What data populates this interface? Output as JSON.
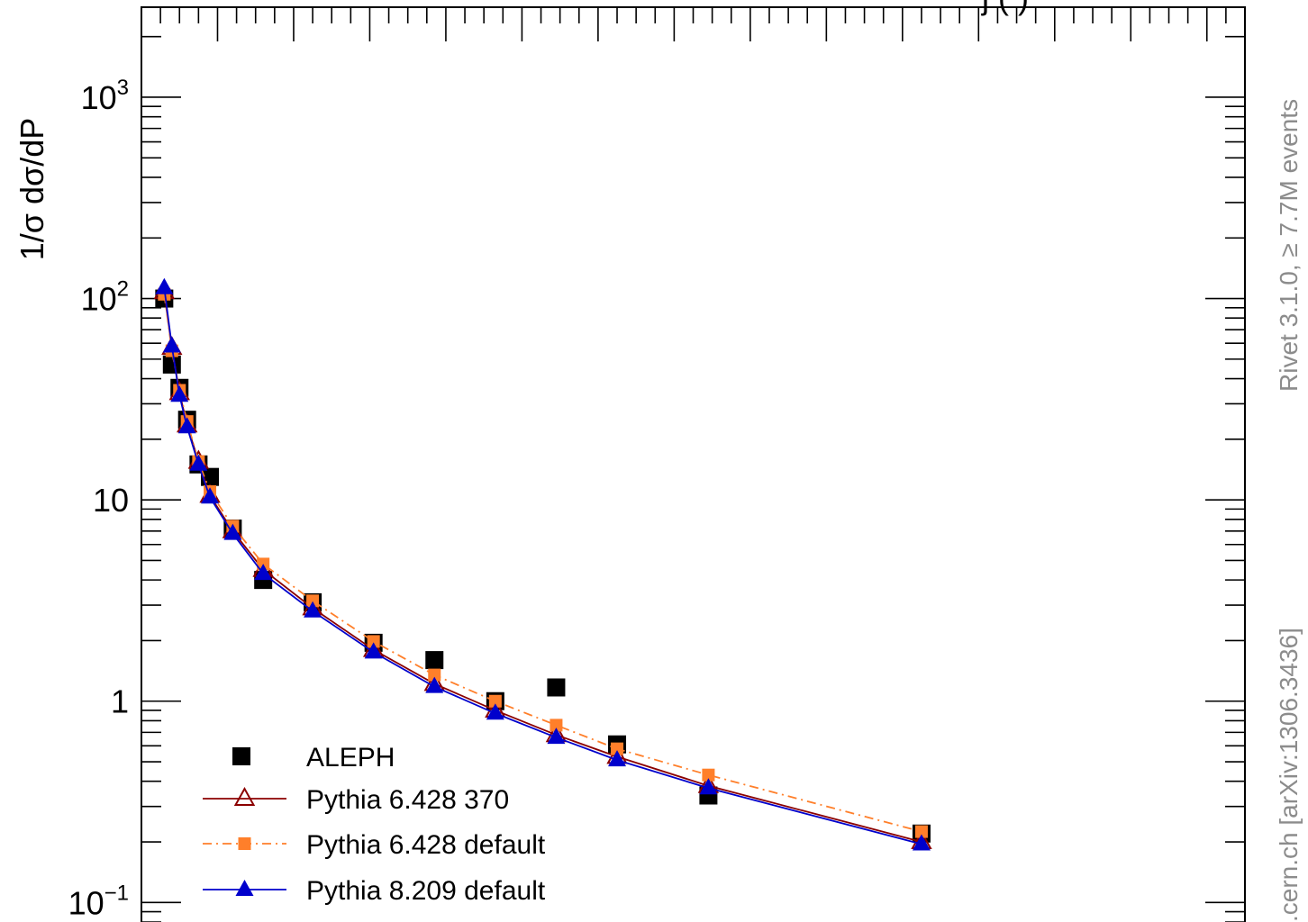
{
  "chart_data": {
    "type": "scatter",
    "title": "",
    "xlabel": "",
    "ylabel": "1/σ  dσ/dP",
    "y_scale": "log",
    "ylim": [
      0.08,
      2800
    ],
    "xlim": [
      0.0,
      0.145
    ],
    "y_ticks": [
      {
        "value": 0.1,
        "base": "10",
        "exp": "−1"
      },
      {
        "value": 1,
        "label": "1"
      },
      {
        "value": 10,
        "label": "10"
      },
      {
        "value": 100,
        "base": "10",
        "exp": "2"
      },
      {
        "value": 1000,
        "base": "10",
        "exp": "3"
      }
    ],
    "legend_position": "bottom-left",
    "series": [
      {
        "name": "ALEPH",
        "style": "data",
        "color": "#000000",
        "marker": "filled-square",
        "x": [
          0.003,
          0.004,
          0.005,
          0.006,
          0.0075,
          0.009,
          0.012,
          0.016,
          0.0225,
          0.0305,
          0.0385,
          0.0465,
          0.0545,
          0.0625,
          0.0745,
          0.1025
        ],
        "y": [
          100,
          47,
          36,
          25,
          15,
          13,
          7.2,
          4,
          3.1,
          1.95,
          1.6,
          1.0,
          1.17,
          0.61,
          0.34,
          0.22
        ]
      },
      {
        "name": "Pythia 6.428 370",
        "style": "solid",
        "color": "#8b0000",
        "marker": "open-triangle",
        "x": [
          0.003,
          0.004,
          0.005,
          0.006,
          0.0075,
          0.009,
          0.012,
          0.016,
          0.0225,
          0.0305,
          0.0385,
          0.0465,
          0.0545,
          0.0625,
          0.0745,
          0.1025
        ],
        "y": [
          108,
          57,
          34,
          23.5,
          15.5,
          10.5,
          7.0,
          4.5,
          2.9,
          1.8,
          1.22,
          0.9,
          0.68,
          0.53,
          0.38,
          0.2
        ]
      },
      {
        "name": "Pythia 6.428 default",
        "style": "dash-dot",
        "color": "#ff7f2a",
        "marker": "filled-square-small",
        "x": [
          0.003,
          0.004,
          0.005,
          0.006,
          0.0075,
          0.009,
          0.012,
          0.016,
          0.0225,
          0.0305,
          0.0385,
          0.0465,
          0.0545,
          0.0625,
          0.0745,
          0.1025
        ],
        "y": [
          105,
          55,
          35,
          24.5,
          15.5,
          11.0,
          7.4,
          4.8,
          3.15,
          1.98,
          1.35,
          1.0,
          0.76,
          0.58,
          0.43,
          0.225
        ]
      },
      {
        "name": "Pythia 8.209 default",
        "style": "solid",
        "color": "#0000cc",
        "marker": "filled-triangle",
        "x": [
          0.003,
          0.004,
          0.005,
          0.006,
          0.0075,
          0.009,
          0.012,
          0.016,
          0.0225,
          0.0305,
          0.0385,
          0.0465,
          0.0545,
          0.0625,
          0.0745,
          0.1025
        ],
        "y": [
          113,
          58,
          33,
          23,
          15,
          10.3,
          6.8,
          4.3,
          2.8,
          1.75,
          1.18,
          0.87,
          0.66,
          0.51,
          0.37,
          0.195
        ]
      }
    ],
    "side_labels": {
      "upper": "Rivet 3.1.0, ≥ 7.7M events",
      "lower": ".cern.ch [arXiv:1306.3436]"
    },
    "top_fragment": "j   (     )"
  }
}
